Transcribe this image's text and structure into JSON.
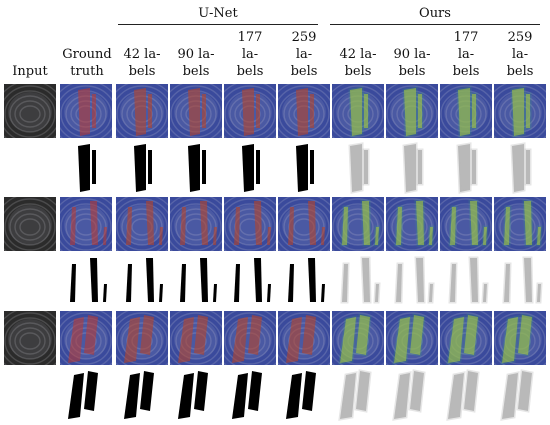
{
  "header": {
    "group_unet": "U-Net",
    "group_ours": "Ours",
    "col_input": "Input",
    "col_gt_line1": "Ground",
    "col_gt_line2": "truth",
    "cols": [
      {
        "l1": "42 la-",
        "l2": "bels",
        "l3": ""
      },
      {
        "l1": "90 la-",
        "l2": "bels",
        "l3": ""
      },
      {
        "l1": "177",
        "l2": "la-",
        "l3": "bels"
      },
      {
        "l1": "259",
        "l2": "la-",
        "l3": "bels"
      },
      {
        "l1": "42 la-",
        "l2": "bels",
        "l3": ""
      },
      {
        "l1": "90 la-",
        "l2": "bels",
        "l3": ""
      },
      {
        "l1": "177",
        "l2": "la-",
        "l3": "bels"
      },
      {
        "l1": "259",
        "l2": "la-",
        "l3": "bels"
      }
    ]
  },
  "samples": 3,
  "colors": {
    "ultrasound_bg": "#2b2b2b",
    "overlay_bg": "#3a4a9c",
    "ground_truth_overlay": "#c0392b",
    "unet_overlay": "#b5452a",
    "ours_overlay_core": "#f0d020",
    "ours_overlay_mid": "#3cb371"
  }
}
